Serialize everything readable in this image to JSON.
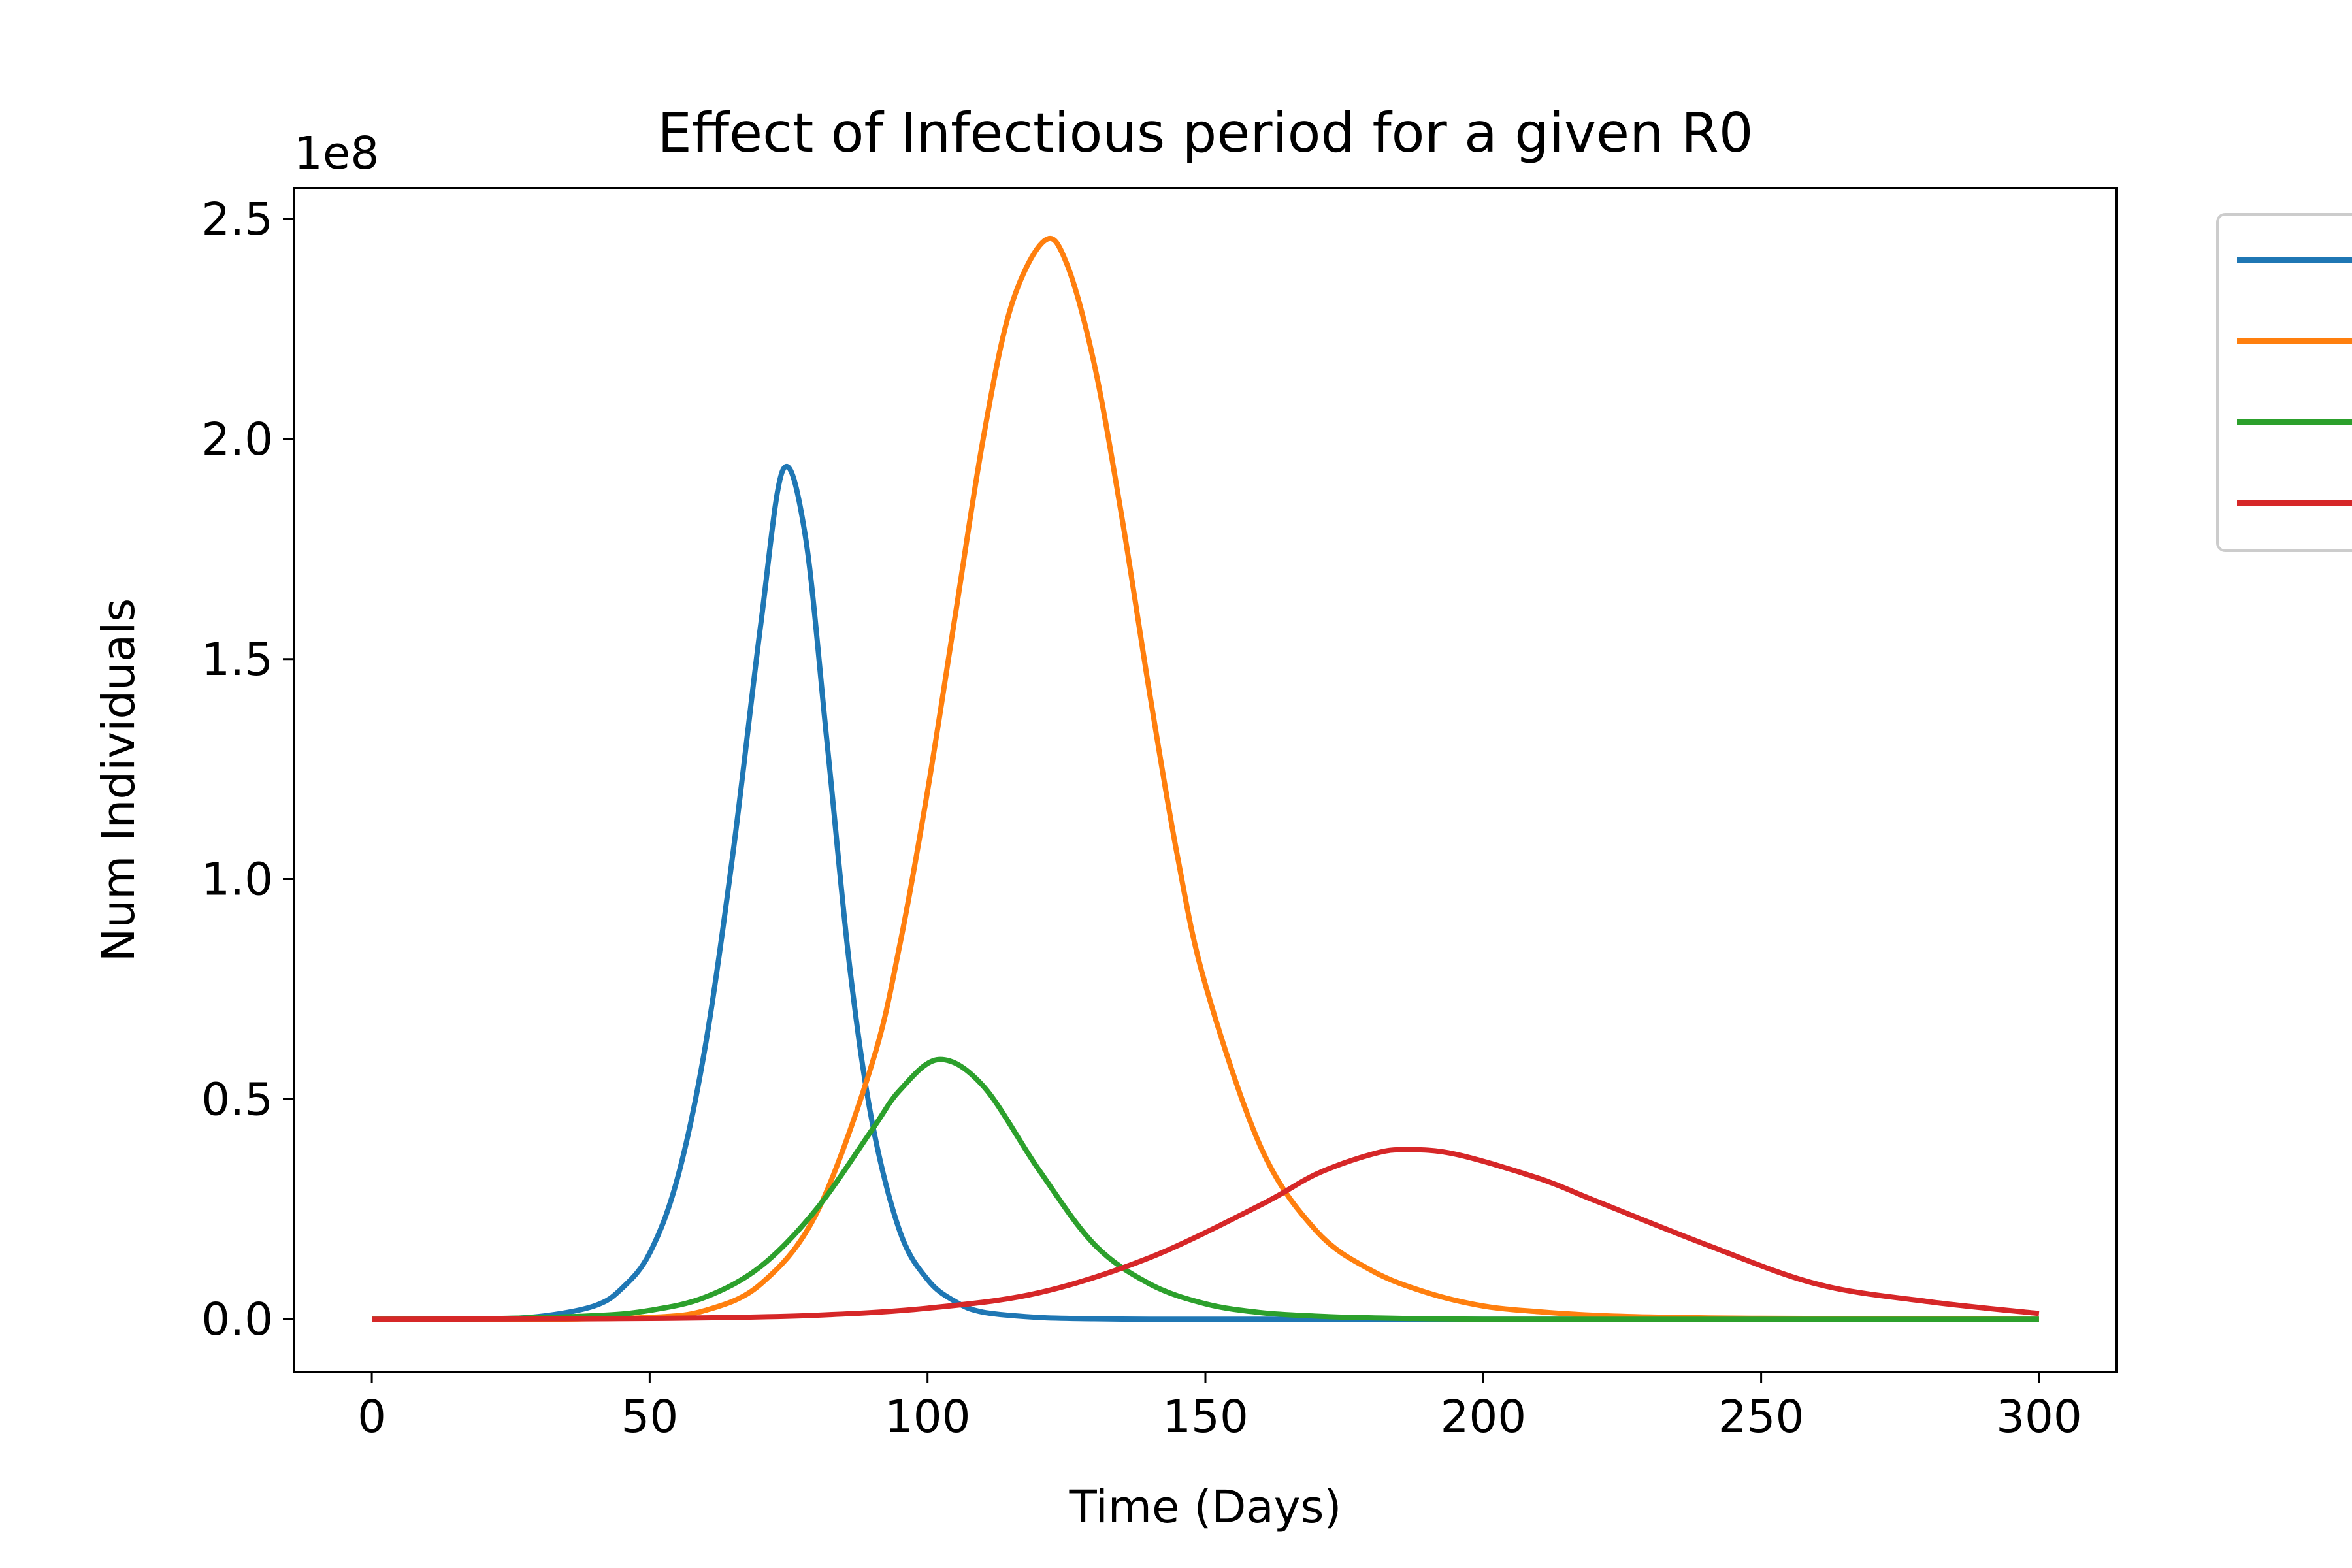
{
  "chart_data": {
    "type": "line",
    "title": "Effect of Infectious period for a given R0",
    "xlabel": "Time (Days)",
    "ylabel": "Num Individuals",
    "y_offset_label": "1e8",
    "xlim": [
      -14,
      314
    ],
    "ylim": [
      -0.12,
      2.57
    ],
    "y_scale_note": "values in units of 1e8",
    "x_ticks": [
      0,
      50,
      100,
      150,
      200,
      250,
      300
    ],
    "x_tick_labels": [
      "0",
      "50",
      "100",
      "150",
      "200",
      "250",
      "300"
    ],
    "y_ticks": [
      0.0,
      0.5,
      1.0,
      1.5,
      2.0,
      2.5
    ],
    "y_tick_labels": [
      "0.0",
      "0.5",
      "1.0",
      "1.5",
      "2.0",
      "2.5"
    ],
    "grid": false,
    "legend_position": "outside-right",
    "series": [
      {
        "color": "#1f77b4",
        "x": [
          0,
          20,
          30,
          40,
          45,
          50,
          55,
          60,
          65,
          70,
          74,
          78,
          82,
          86,
          90,
          95,
          100,
          105,
          110,
          120,
          130,
          140,
          150,
          200,
          250,
          300
        ],
        "values": [
          0.0,
          0.001,
          0.006,
          0.03,
          0.07,
          0.15,
          0.32,
          0.62,
          1.06,
          1.58,
          1.93,
          1.78,
          1.3,
          0.8,
          0.45,
          0.2,
          0.09,
          0.04,
          0.016,
          0.004,
          0.001,
          0.0,
          0.0,
          0.0,
          0.0,
          0.0
        ]
      },
      {
        "color": "#ff7f0e",
        "x": [
          0,
          30,
          50,
          60,
          70,
          80,
          90,
          95,
          100,
          105,
          110,
          115,
          121,
          125,
          130,
          135,
          140,
          145,
          150,
          160,
          170,
          180,
          190,
          200,
          210,
          220,
          230,
          250,
          300
        ],
        "values": [
          0.0,
          0.0,
          0.004,
          0.02,
          0.08,
          0.24,
          0.58,
          0.85,
          1.2,
          1.6,
          2.0,
          2.3,
          2.45,
          2.4,
          2.17,
          1.82,
          1.42,
          1.05,
          0.76,
          0.39,
          0.2,
          0.11,
          0.06,
          0.03,
          0.017,
          0.009,
          0.005,
          0.002,
          0.0
        ]
      },
      {
        "color": "#2ca02c",
        "x": [
          0,
          20,
          40,
          50,
          60,
          70,
          80,
          90,
          95,
          102,
          110,
          120,
          130,
          140,
          150,
          160,
          170,
          180,
          200,
          250,
          300
        ],
        "values": [
          0.0,
          0.001,
          0.008,
          0.02,
          0.05,
          0.12,
          0.25,
          0.43,
          0.52,
          0.59,
          0.53,
          0.34,
          0.17,
          0.08,
          0.035,
          0.015,
          0.007,
          0.003,
          0.0,
          0.0,
          0.0
        ]
      },
      {
        "color": "#d62728",
        "x": [
          0,
          40,
          60,
          80,
          100,
          120,
          140,
          160,
          170,
          180,
          186,
          195,
          210,
          220,
          240,
          260,
          280,
          300
        ],
        "values": [
          0.0,
          0.001,
          0.003,
          0.009,
          0.025,
          0.06,
          0.14,
          0.26,
          0.33,
          0.375,
          0.385,
          0.375,
          0.32,
          0.27,
          0.17,
          0.08,
          0.04,
          0.013
        ]
      }
    ]
  }
}
